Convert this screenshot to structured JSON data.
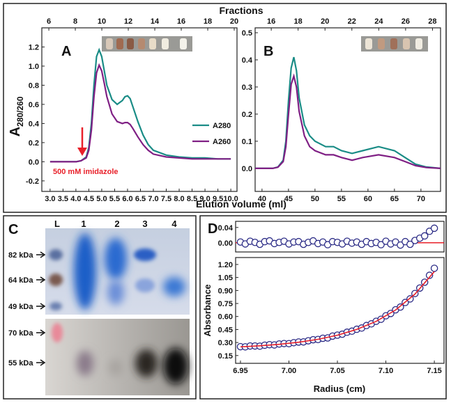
{
  "chart_data": [
    {
      "type": "line",
      "panel_label": "A",
      "xlabel": "Elution volume (ml)",
      "x2label": "Fractions",
      "ylabel_main": "A",
      "ylabel_sub": "280/260",
      "annotation": "500 mM imidazole",
      "annotation_color": "#e8202a",
      "xlim": [
        2.68,
        10.24
      ],
      "xticks": [
        {
          "value": 3,
          "label": "3.0"
        },
        3.5,
        {
          "value": 4,
          "label": "4.0"
        },
        4.5,
        {
          "value": 5,
          "label": "5.0"
        },
        5.5,
        {
          "value": 6,
          "label": "6.0"
        },
        6.5,
        {
          "value": 7,
          "label": "7.0"
        },
        7.5,
        {
          "value": 8,
          "label": "8.0"
        },
        8.5,
        {
          "value": 9,
          "label": "9.0"
        },
        9.5,
        {
          "value": 10,
          "label": "10.0"
        }
      ],
      "x2lim": [
        5.47,
        20.21
      ],
      "x2ticks": [
        6,
        8,
        10,
        12,
        14,
        16,
        18,
        20
      ],
      "ylim": [
        -0.31,
        1.4
      ],
      "yticks": [
        -0.2,
        {
          "value": 0,
          "label": "0.0"
        },
        0.2,
        0.4,
        0.6,
        0.8,
        {
          "value": 1,
          "label": "1.0"
        },
        1.2
      ],
      "x": [
        3.0,
        3.5,
        4.0,
        4.2,
        4.4,
        4.5,
        4.6,
        4.7,
        4.8,
        4.9,
        5.0,
        5.1,
        5.2,
        5.4,
        5.6,
        5.8,
        5.9,
        6.0,
        6.1,
        6.2,
        6.4,
        6.6,
        6.8,
        7.0,
        7.5,
        8.0,
        8.5,
        9.0,
        9.5,
        10.0
      ],
      "series": [
        {
          "name": "A280",
          "color": "#1a8c86",
          "values": [
            0,
            0,
            0,
            0.01,
            0.05,
            0.15,
            0.4,
            0.8,
            1.1,
            1.17,
            1.1,
            0.95,
            0.8,
            0.65,
            0.6,
            0.64,
            0.68,
            0.69,
            0.66,
            0.58,
            0.42,
            0.28,
            0.18,
            0.12,
            0.07,
            0.05,
            0.04,
            0.04,
            0.03,
            0.03
          ]
        },
        {
          "name": "A260",
          "color": "#7f1f84",
          "values": [
            0,
            0,
            0,
            0.01,
            0.04,
            0.12,
            0.33,
            0.68,
            0.93,
            1.01,
            0.95,
            0.82,
            0.68,
            0.5,
            0.42,
            0.4,
            0.41,
            0.41,
            0.39,
            0.35,
            0.26,
            0.18,
            0.12,
            0.08,
            0.05,
            0.04,
            0.03,
            0.03,
            0.03,
            0.03
          ]
        }
      ]
    },
    {
      "type": "line",
      "panel_label": "B",
      "xlim": [
        38.7,
        73.7
      ],
      "xticks": [
        40,
        45,
        50,
        55,
        60,
        65,
        70
      ],
      "x2lim": [
        14.8,
        28.6
      ],
      "x2ticks": [
        16,
        18,
        20,
        22,
        24,
        26,
        28
      ],
      "ylim": [
        -0.085,
        0.518
      ],
      "yticks": [
        {
          "value": 0,
          "label": "0.0"
        },
        0.1,
        0.2,
        0.3,
        0.4,
        0.5
      ],
      "x": [
        38.7,
        40,
        42,
        43,
        44,
        44.5,
        45,
        45.5,
        46,
        46.5,
        47,
        48,
        49,
        50,
        52,
        53.5,
        55,
        57,
        59,
        62,
        65,
        67,
        69,
        71,
        73.7
      ],
      "series": [
        {
          "color": "#1a8c86",
          "values": [
            0,
            0,
            0,
            0.005,
            0.03,
            0.1,
            0.25,
            0.37,
            0.41,
            0.36,
            0.26,
            0.16,
            0.12,
            0.1,
            0.08,
            0.08,
            0.065,
            0.055,
            0.065,
            0.08,
            0.065,
            0.04,
            0.015,
            0.005,
            0
          ]
        },
        {
          "color": "#7f1f84",
          "values": [
            0,
            0,
            0,
            0.004,
            0.025,
            0.08,
            0.2,
            0.31,
            0.34,
            0.3,
            0.21,
            0.12,
            0.08,
            0.065,
            0.05,
            0.05,
            0.04,
            0.03,
            0.04,
            0.05,
            0.04,
            0.025,
            0.01,
            0.003,
            0
          ]
        }
      ]
    },
    {
      "type": "scatter",
      "panel_label": "D",
      "xlim": [
        6.945,
        7.16
      ],
      "ylim": [
        -0.024,
        0.056
      ],
      "yticks": [
        {
          "value": 0,
          "label": "0.00"
        },
        {
          "value": 0.04,
          "label": "0.04"
        }
      ],
      "x": [
        6.95,
        6.955,
        6.96,
        6.965,
        6.97,
        6.975,
        6.98,
        6.985,
        6.99,
        6.995,
        7.0,
        7.005,
        7.01,
        7.015,
        7.02,
        7.025,
        7.03,
        7.035,
        7.04,
        7.045,
        7.05,
        7.055,
        7.06,
        7.065,
        7.07,
        7.075,
        7.08,
        7.085,
        7.09,
        7.095,
        7.1,
        7.105,
        7.11,
        7.115,
        7.12,
        7.125,
        7.13,
        7.135,
        7.14,
        7.145,
        7.15
      ],
      "series": [
        {
          "color": "#2b2b86",
          "values": [
            0.002,
            -0.003,
            0.004,
            0.001,
            -0.004,
            0.003,
            0.005,
            -0.002,
            0.001,
            0.004,
            -0.003,
            0.002,
            0.003,
            -0.004,
            0.001,
            0.005,
            -0.002,
            0.002,
            -0.005,
            0.003,
            0.001,
            -0.003,
            0.004,
            -0.001,
            0.002,
            -0.004,
            0.003,
            -0.002,
            0.001,
            -0.005,
            0.004,
            -0.003,
            0.002,
            -0.006,
            0.003,
            -0.004,
            0.006,
            0.012,
            0.018,
            0.03,
            0.038
          ]
        }
      ]
    },
    {
      "type": "scatter",
      "xlabel": "Radius (cm)",
      "ylabel": "Absorbance",
      "xlim": [
        6.945,
        7.16
      ],
      "xticks": [
        6.95,
        {
          "value": 7,
          "label": "7.00"
        },
        7.05,
        {
          "value": 7.1,
          "label": "7.10"
        },
        7.15
      ],
      "ylim": [
        0.06,
        1.28
      ],
      "yticks": [
        0.15,
        {
          "value": 0.3,
          "label": "0.30"
        },
        0.45,
        {
          "value": 0.6,
          "label": "0.60"
        },
        0.75,
        {
          "value": 0.9,
          "label": "0.90"
        },
        1.05,
        {
          "value": 1.2,
          "label": "1.20"
        }
      ],
      "x": [
        6.95,
        6.955,
        6.96,
        6.965,
        6.97,
        6.975,
        6.98,
        6.985,
        6.99,
        6.995,
        7.0,
        7.005,
        7.01,
        7.015,
        7.02,
        7.025,
        7.03,
        7.035,
        7.04,
        7.045,
        7.05,
        7.055,
        7.06,
        7.065,
        7.07,
        7.075,
        7.08,
        7.085,
        7.09,
        7.095,
        7.1,
        7.105,
        7.11,
        7.115,
        7.12,
        7.125,
        7.13,
        7.135,
        7.14,
        7.145,
        7.15
      ],
      "series": [
        {
          "color": "#2b2b86",
          "values": [
            0.252,
            0.25,
            0.26,
            0.26,
            0.258,
            0.269,
            0.275,
            0.272,
            0.283,
            0.288,
            0.287,
            0.298,
            0.306,
            0.307,
            0.32,
            0.332,
            0.335,
            0.349,
            0.353,
            0.374,
            0.385,
            0.396,
            0.419,
            0.431,
            0.453,
            0.467,
            0.496,
            0.515,
            0.545,
            0.568,
            0.608,
            0.635,
            0.677,
            0.709,
            0.762,
            0.803,
            0.865,
            0.928,
            0.995,
            1.075,
            1.156
          ]
        }
      ],
      "fit": {
        "color": "#e8202a",
        "x": [
          6.95,
          6.97,
          6.99,
          7.01,
          7.03,
          7.05,
          7.07,
          7.09,
          7.11,
          7.13,
          7.15
        ],
        "values": [
          0.25,
          0.262,
          0.279,
          0.303,
          0.337,
          0.384,
          0.451,
          0.544,
          0.675,
          0.859,
          1.118
        ]
      }
    }
  ],
  "gel": {
    "panel_label": "C",
    "lanes": [
      "L",
      "1",
      "2",
      "3",
      "4"
    ],
    "markers_top": [
      "82 kDa",
      "64 kDa",
      "49 kDa"
    ],
    "markers_bottom": [
      "70 kDa",
      "55 kDa"
    ]
  }
}
